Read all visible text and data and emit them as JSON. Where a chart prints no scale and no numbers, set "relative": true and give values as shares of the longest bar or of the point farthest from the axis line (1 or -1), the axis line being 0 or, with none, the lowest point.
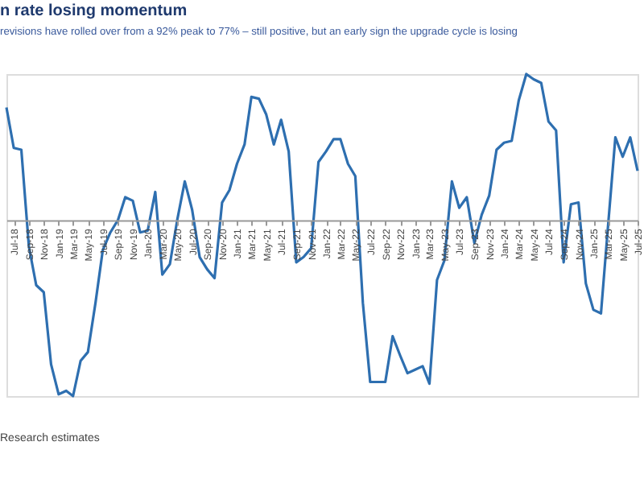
{
  "chart_data": {
    "type": "line",
    "title": "n rate losing momentum",
    "subtitle": "revisions have rolled over from a 92% peak to 77% – still positive, but an early sign the upgrade cycle is losing",
    "annotations": [
      "Research estimates"
    ],
    "relative": true,
    "grid": false,
    "marker": "none",
    "line_style": "solid",
    "x": [
      "2018-06",
      "2018-07",
      "2018-08",
      "2018-09",
      "2018-10",
      "2018-11",
      "2018-12",
      "2019-01",
      "2019-02",
      "2019-03",
      "2019-04",
      "2019-05",
      "2019-06",
      "2019-07",
      "2019-08",
      "2019-09",
      "2019-10",
      "2019-11",
      "2019-12",
      "2020-01",
      "2020-02",
      "2020-03",
      "2020-04",
      "2020-05",
      "2020-06",
      "2020-07",
      "2020-08",
      "2020-09",
      "2020-10",
      "2020-11",
      "2020-12",
      "2021-01",
      "2021-02",
      "2021-03",
      "2021-04",
      "2021-05",
      "2021-06",
      "2021-07",
      "2021-08",
      "2021-09",
      "2021-10",
      "2021-11",
      "2021-12",
      "2022-01",
      "2022-02",
      "2022-03",
      "2022-04",
      "2022-05",
      "2022-06",
      "2022-07",
      "2022-08",
      "2022-09",
      "2022-10",
      "2022-11",
      "2022-12",
      "2023-01",
      "2023-02",
      "2023-03",
      "2023-04",
      "2023-05",
      "2023-06",
      "2023-07",
      "2023-08",
      "2023-09",
      "2023-10",
      "2023-11",
      "2023-12",
      "2024-01",
      "2024-02",
      "2024-03",
      "2024-04",
      "2024-05",
      "2024-06",
      "2024-07",
      "2024-08",
      "2024-09",
      "2024-10",
      "2024-11",
      "2024-12",
      "2025-01",
      "2025-02",
      "2025-03",
      "2025-04",
      "2025-05",
      "2025-06",
      "2025-07"
    ],
    "series": [
      {
        "color": "#2e6fb0",
        "values": [
          0.64,
          0.41,
          0.4,
          -0.15,
          -0.37,
          -0.41,
          -0.82,
          -0.99,
          -0.97,
          -1,
          -0.8,
          -0.75,
          -0.47,
          -0.17,
          -0.07,
          0,
          0.13,
          0.11,
          -0.07,
          -0.06,
          0.16,
          -0.31,
          -0.25,
          0,
          0.22,
          0.06,
          -0.21,
          -0.28,
          -0.33,
          0.1,
          0.17,
          0.32,
          0.43,
          0.7,
          0.69,
          0.6,
          0.43,
          0.57,
          0.39,
          -0.24,
          -0.21,
          -0.16,
          0.33,
          0.39,
          0.46,
          0.46,
          0.32,
          0.25,
          -0.47,
          -0.92,
          -0.92,
          -0.92,
          -0.66,
          -0.77,
          -0.87,
          -0.85,
          -0.83,
          -0.93,
          -0.34,
          -0.23,
          0.22,
          0.07,
          0.13,
          -0.13,
          0.03,
          0.14,
          0.4,
          0.44,
          0.45,
          0.68,
          0.83,
          0.8,
          0.78,
          0.56,
          0.51,
          -0.24,
          0.09,
          0.1,
          -0.36,
          -0.51,
          -0.53,
          -0.05,
          0.47,
          0.36,
          0.47,
          0.28
        ]
      }
    ],
    "xlim": [
      "2018-06",
      "2025-07"
    ],
    "xticks": [
      {
        "value": "2018-07",
        "label": "Jul-18"
      },
      {
        "value": "2018-09",
        "label": "Sep-18"
      },
      {
        "value": "2018-11",
        "label": "Nov-18"
      },
      {
        "value": "2019-01",
        "label": "Jan-19"
      },
      {
        "value": "2019-03",
        "label": "Mar-19"
      },
      {
        "value": "2019-05",
        "label": "May-19"
      },
      {
        "value": "2019-07",
        "label": "Jul-19"
      },
      {
        "value": "2019-09",
        "label": "Sep-19"
      },
      {
        "value": "2019-11",
        "label": "Nov-19"
      },
      {
        "value": "2020-01",
        "label": "Jan-20"
      },
      {
        "value": "2020-03",
        "label": "Mar-20"
      },
      {
        "value": "2020-05",
        "label": "May-20"
      },
      {
        "value": "2020-07",
        "label": "Jul-20"
      },
      {
        "value": "2020-09",
        "label": "Sep-20"
      },
      {
        "value": "2020-11",
        "label": "Nov-20"
      },
      {
        "value": "2021-01",
        "label": "Jan-21"
      },
      {
        "value": "2021-03",
        "label": "Mar-21"
      },
      {
        "value": "2021-05",
        "label": "May-21"
      },
      {
        "value": "2021-07",
        "label": "Jul-21"
      },
      {
        "value": "2021-09",
        "label": "Sep-21"
      },
      {
        "value": "2021-11",
        "label": "Nov-21"
      },
      {
        "value": "2022-01",
        "label": "Jan-22"
      },
      {
        "value": "2022-03",
        "label": "Mar-22"
      },
      {
        "value": "2022-05",
        "label": "May-22"
      },
      {
        "value": "2022-07",
        "label": "Jul-22"
      },
      {
        "value": "2022-09",
        "label": "Sep-22"
      },
      {
        "value": "2022-11",
        "label": "Nov-22"
      },
      {
        "value": "2023-01",
        "label": "Jan-23"
      },
      {
        "value": "2023-03",
        "label": "Mar-23"
      },
      {
        "value": "2023-05",
        "label": "May-23"
      },
      {
        "value": "2023-07",
        "label": "Jul-23"
      },
      {
        "value": "2023-09",
        "label": "Sep-23"
      },
      {
        "value": "2023-11",
        "label": "Nov-23"
      },
      {
        "value": "2024-01",
        "label": "Jan-24"
      },
      {
        "value": "2024-03",
        "label": "Mar-24"
      },
      {
        "value": "2024-05",
        "label": "May-24"
      },
      {
        "value": "2024-07",
        "label": "Jul-24"
      },
      {
        "value": "2024-09",
        "label": "Sep-24"
      },
      {
        "value": "2024-11",
        "label": "Nov-24"
      },
      {
        "value": "2025-01",
        "label": "Jan-25"
      },
      {
        "value": "2025-03",
        "label": "Mar-25"
      },
      {
        "value": "2025-05",
        "label": "May-25"
      },
      {
        "value": "2025-07",
        "label": "Jul-25"
      }
    ]
  }
}
